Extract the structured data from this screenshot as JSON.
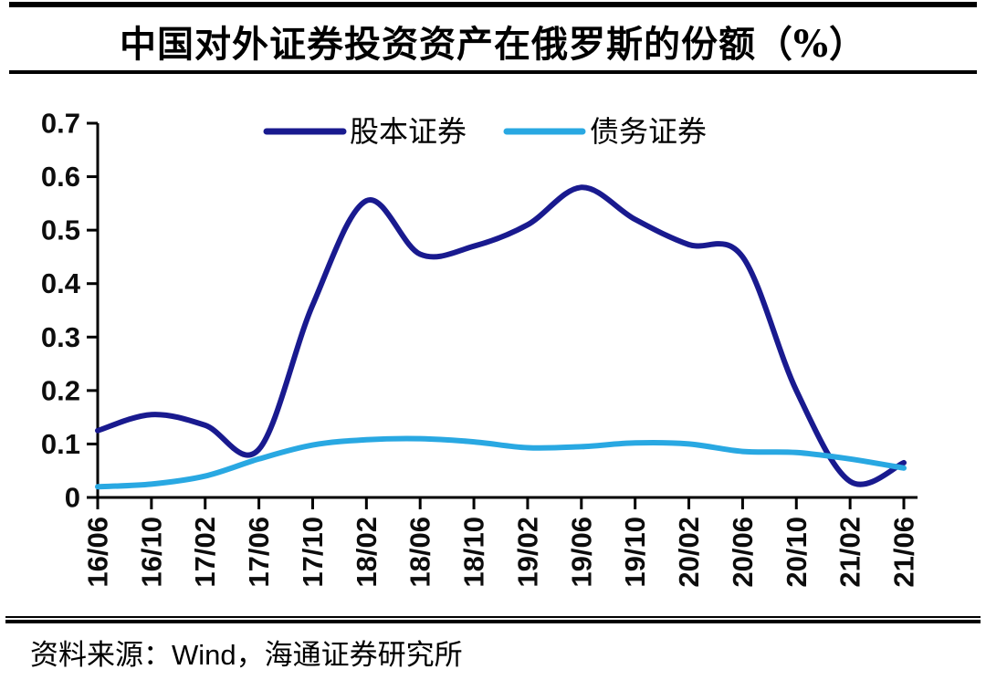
{
  "title": "中国对外证券投资资产在俄罗斯的份额（%）",
  "source": {
    "prefix": "资料来源：",
    "vendor": "Wind",
    "suffix": "，海通证券研究所"
  },
  "chart_data": {
    "type": "line",
    "title": "中国对外证券投资资产在俄罗斯的份额（%）",
    "xlabel": "",
    "ylabel": "",
    "categories": [
      "16/06",
      "16/10",
      "17/02",
      "17/06",
      "17/10",
      "18/02",
      "18/06",
      "18/10",
      "19/02",
      "19/06",
      "19/10",
      "20/02",
      "20/06",
      "20/10",
      "21/02",
      "21/06"
    ],
    "series": [
      {
        "name": "股本证券",
        "color": "#191A8F",
        "values": [
          0.125,
          0.155,
          0.135,
          0.09,
          0.36,
          0.555,
          0.455,
          0.47,
          0.51,
          0.58,
          0.52,
          0.473,
          0.45,
          0.2,
          0.03,
          0.065
        ]
      },
      {
        "name": "债务证券",
        "color": "#29A8E2",
        "values": [
          0.02,
          0.025,
          0.04,
          0.072,
          0.098,
          0.108,
          0.11,
          0.104,
          0.093,
          0.095,
          0.102,
          0.1,
          0.086,
          0.084,
          0.072,
          0.055
        ]
      }
    ],
    "ylim": [
      0,
      0.7
    ],
    "ytick_labels": [
      "0",
      "0.1",
      "0.2",
      "0.3",
      "0.4",
      "0.5",
      "0.6",
      "0.7"
    ],
    "grid": false,
    "legend_position": "top-center",
    "axis_color": "#000000",
    "x_labels_rotation": 90
  }
}
